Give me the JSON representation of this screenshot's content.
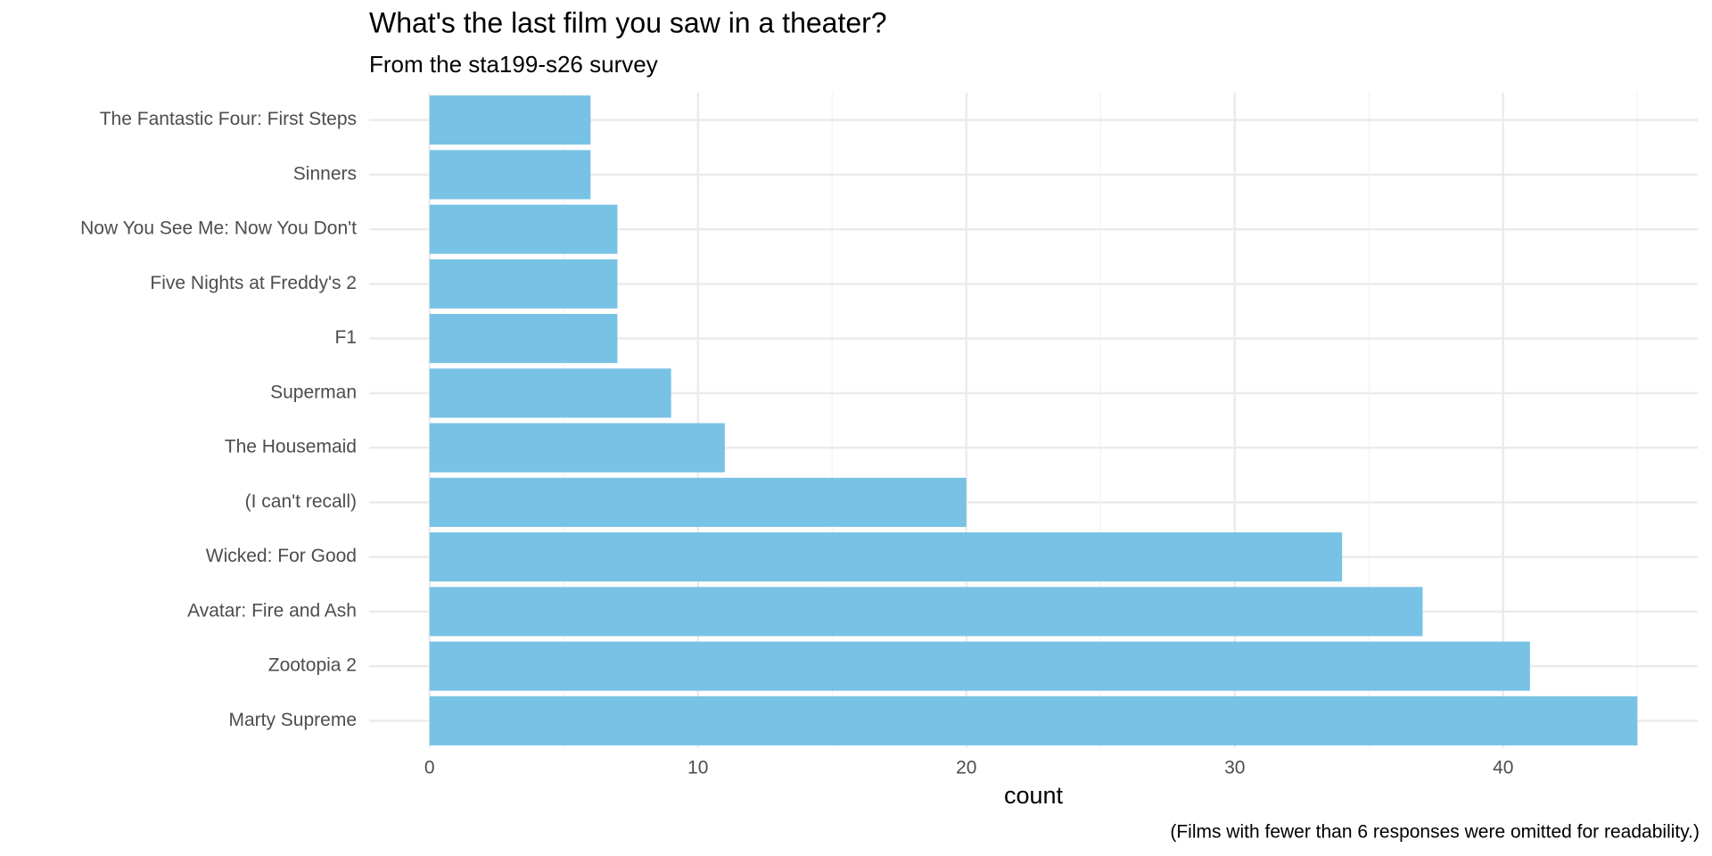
{
  "chart_data": {
    "type": "bar",
    "orientation": "horizontal",
    "title": "What's the last film you saw in a theater?",
    "subtitle": "From the sta199-s26 survey",
    "x_label": "count",
    "caption": "(Films with fewer than 6 responses were omitted for readability.)",
    "categories": [
      "The Fantastic Four: First Steps",
      "Sinners",
      "Now You See Me: Now You Don't",
      "Five Nights at Freddy's 2",
      "F1",
      "Superman",
      "The Housemaid",
      "(I can't recall)",
      "Wicked: For Good",
      "Avatar: Fire and Ash",
      "Zootopia 2",
      "Marty Supreme"
    ],
    "values": [
      6,
      6,
      7,
      7,
      7,
      9,
      11,
      20,
      34,
      37,
      41,
      45
    ],
    "color": "#78c2e5",
    "xlim": [
      -2.25,
      47.25
    ],
    "xticks": [
      0,
      10,
      20,
      30,
      40
    ],
    "minor_xticks": [
      5,
      15,
      25,
      35,
      45
    ],
    "grid": true
  }
}
